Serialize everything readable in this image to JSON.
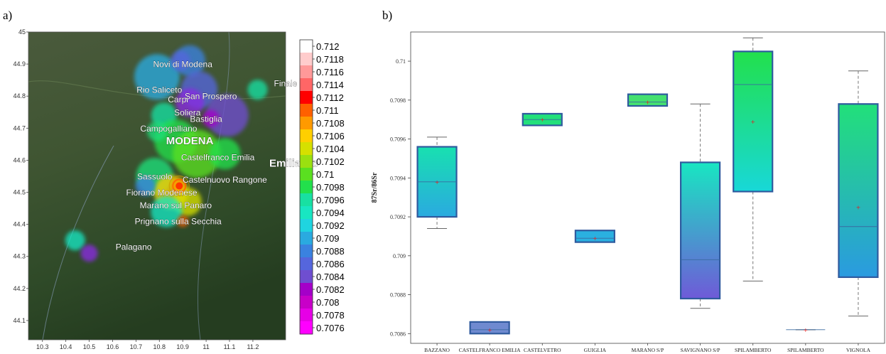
{
  "panel_labels": [
    "a)",
    "b)"
  ],
  "colors": {
    "scale": [
      "#ff00ff",
      "#e600e6",
      "#c800c8",
      "#a400c8",
      "#8a2be2",
      "#6f4ed0",
      "#5566dd",
      "#3a82e0",
      "#2aaae0",
      "#1fd4e0",
      "#18e6c2",
      "#18e0a2",
      "#1ee07a",
      "#22e04c",
      "#5ae020",
      "#9ae010",
      "#d6e000",
      "#ffcf00",
      "#ff9a00",
      "#ff6000",
      "#ff0000",
      "#ff3333",
      "#ff6666",
      "#ff9999",
      "#ffcccc",
      "#ffffff"
    ],
    "map_dark": "#2d4226",
    "box_edge": "#2f5a9e"
  },
  "chart_data": [
    {
      "type": "heatmap",
      "panel": "a)",
      "x_ticks": [
        "10.3",
        "10.4",
        "10.5",
        "10.6",
        "10.7",
        "10.8",
        "10.9",
        "11",
        "11.1",
        "11.2"
      ],
      "y_ticks": [
        "45",
        "44.9",
        "44.8",
        "44.7",
        "44.6",
        "44.5",
        "44.4",
        "44.3",
        "44.2",
        "44.1"
      ],
      "xlim": [
        10.24,
        11.34
      ],
      "ylim": [
        44.04,
        45.0
      ],
      "places": [
        {
          "name": "Novi di Modena",
          "lon": 10.9,
          "lat": 44.89
        },
        {
          "name": "Rio Saliceto",
          "lon": 10.8,
          "lat": 44.81
        },
        {
          "name": "Carpi",
          "lon": 10.88,
          "lat": 44.78
        },
        {
          "name": "San Prospero",
          "lon": 11.02,
          "lat": 44.79
        },
        {
          "name": "Finale Er",
          "lon": 11.29,
          "lat": 44.83
        },
        {
          "name": "Soliera",
          "lon": 10.92,
          "lat": 44.74
        },
        {
          "name": "Bastiglia",
          "lon": 11.0,
          "lat": 44.72
        },
        {
          "name": "Campogalliano",
          "lon": 10.84,
          "lat": 44.69
        },
        {
          "name": "MODENA",
          "lon": 10.93,
          "lat": 44.65
        },
        {
          "name": "Castelfranco Emilia",
          "lon": 11.05,
          "lat": 44.6
        },
        {
          "name": "Emilia-Ro",
          "lon": 11.27,
          "lat": 44.58
        },
        {
          "name": "Sassuolo",
          "lon": 10.78,
          "lat": 44.54
        },
        {
          "name": "Castelnuovo Rangone",
          "lon": 11.08,
          "lat": 44.53
        },
        {
          "name": "Fiorano Modenese",
          "lon": 10.81,
          "lat": 44.49
        },
        {
          "name": "Marano sul Panaro",
          "lon": 10.87,
          "lat": 44.45
        },
        {
          "name": "Prignano sulla Secchia",
          "lon": 10.88,
          "lat": 44.4
        },
        {
          "name": "Palagano",
          "lon": 10.69,
          "lat": 44.32
        }
      ],
      "legend_title": "",
      "legend_values": [
        "0.712",
        "0.7118",
        "0.7116",
        "0.7114",
        "0.7112",
        "0.711",
        "0.7108",
        "0.7106",
        "0.7104",
        "0.7102",
        "0.71",
        "0.7098",
        "0.7096",
        "0.7094",
        "0.7092",
        "0.709",
        "0.7088",
        "0.7086",
        "0.7084",
        "0.7082",
        "0.708",
        "0.7078",
        "0.7076"
      ]
    },
    {
      "type": "box",
      "panel": "b)",
      "ylabel": "87Sr/86Sr",
      "ylim": [
        0.70855,
        0.71015
      ],
      "y_ticks": [
        "0.7086",
        "0.7088",
        "0.709",
        "0.7092",
        "0.7094",
        "0.7096",
        "0.7098",
        "0.71"
      ],
      "y_tick_values": [
        0.7086,
        0.7088,
        0.709,
        0.7092,
        0.7094,
        0.7096,
        0.7098,
        0.71
      ],
      "categories": [
        "BAZZANO",
        "CASTELFRANCO EMILIA",
        "CASTELVETRO",
        "GUIGLIA",
        "MARANO S/P",
        "SAVIGNANO S/P",
        "SPILAMBERTO",
        "SPILAMBERTO",
        "VIGNOLA"
      ],
      "boxes": [
        {
          "whisker_low": 0.70914,
          "q1": 0.7092,
          "median": 0.70938,
          "mean": 0.70938,
          "q3": 0.70956,
          "whisker_high": 0.70961,
          "top_color": "#18e0b0",
          "bottom_color": "#2aaae0"
        },
        {
          "whisker_low": 0.7086,
          "q1": 0.7086,
          "median": 0.70862,
          "mean": 0.70862,
          "q3": 0.70866,
          "whisker_high": 0.70866,
          "top_color": "#6f8ad0",
          "bottom_color": "#6f8ad0"
        },
        {
          "whisker_low": 0.70967,
          "q1": 0.70967,
          "median": 0.7097,
          "mean": 0.7097,
          "q3": 0.70973,
          "whisker_high": 0.70973,
          "top_color": "#22e07a",
          "bottom_color": "#22e07a"
        },
        {
          "whisker_low": 0.70907,
          "q1": 0.70907,
          "median": 0.70909,
          "mean": 0.70909,
          "q3": 0.70913,
          "whisker_high": 0.70913,
          "top_color": "#2ab0e0",
          "bottom_color": "#2ab0e0"
        },
        {
          "whisker_low": 0.70977,
          "q1": 0.70977,
          "median": 0.70979,
          "mean": 0.70979,
          "q3": 0.70983,
          "whisker_high": 0.70983,
          "top_color": "#44e070",
          "bottom_color": "#44e070"
        },
        {
          "whisker_low": 0.70873,
          "q1": 0.70878,
          "median": 0.70898,
          "mean": null,
          "q3": 0.70948,
          "whisker_high": 0.70978,
          "top_color": "#18e6c2",
          "bottom_color": "#6f5ad8"
        },
        {
          "whisker_low": 0.70887,
          "q1": 0.70933,
          "median": 0.70988,
          "mean": 0.70969,
          "q3": 0.71005,
          "whisker_high": 0.71012,
          "top_color": "#22e04c",
          "bottom_color": "#18d8d8"
        },
        {
          "whisker_low": 0.70862,
          "q1": 0.70862,
          "median": 0.70862,
          "mean": 0.70862,
          "q3": 0.70862,
          "whisker_high": 0.70862,
          "top_color": "#888888",
          "bottom_color": "#888888"
        },
        {
          "whisker_low": 0.70869,
          "q1": 0.70889,
          "median": 0.70915,
          "mean": 0.70925,
          "q3": 0.70978,
          "whisker_high": 0.70995,
          "top_color": "#22e07a",
          "bottom_color": "#2a9ae0"
        }
      ]
    }
  ]
}
